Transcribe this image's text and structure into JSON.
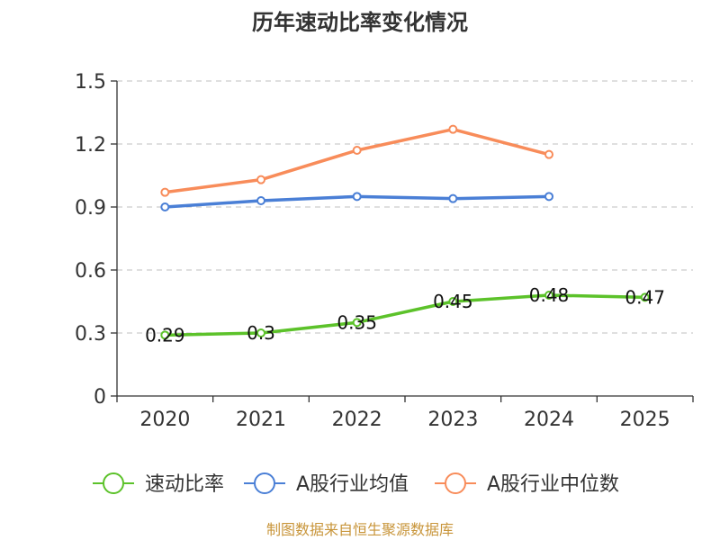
{
  "chart_data": {
    "type": "line",
    "title": "历年速动比率变化情况",
    "categories": [
      "2020",
      "2021",
      "2022",
      "2023",
      "2024",
      "2025"
    ],
    "y_ticks": [
      "0",
      "0.3",
      "0.6",
      "0.9",
      "1.2",
      "1.5"
    ],
    "ylim": [
      0,
      1.5
    ],
    "grid": true,
    "legend_position": "bottom",
    "series": [
      {
        "name": "速动比率",
        "color": "#5cc22a",
        "values": [
          0.29,
          0.3,
          0.35,
          0.45,
          0.48,
          0.47
        ],
        "labels": [
          "0.29",
          "0.3",
          "0.35",
          "0.45",
          "0.48",
          "0.47"
        ],
        "show_labels": true
      },
      {
        "name": "A股行业均值",
        "color": "#4a7fd6",
        "values": [
          0.9,
          0.93,
          0.95,
          0.94,
          0.95,
          null
        ],
        "show_labels": false
      },
      {
        "name": "A股行业中位数",
        "color": "#f88c5a",
        "values": [
          0.97,
          1.03,
          1.17,
          1.27,
          1.15,
          null
        ],
        "show_labels": false
      }
    ]
  },
  "source_text": "制图数据来自恒生聚源数据库",
  "source_color": "#c8953a"
}
